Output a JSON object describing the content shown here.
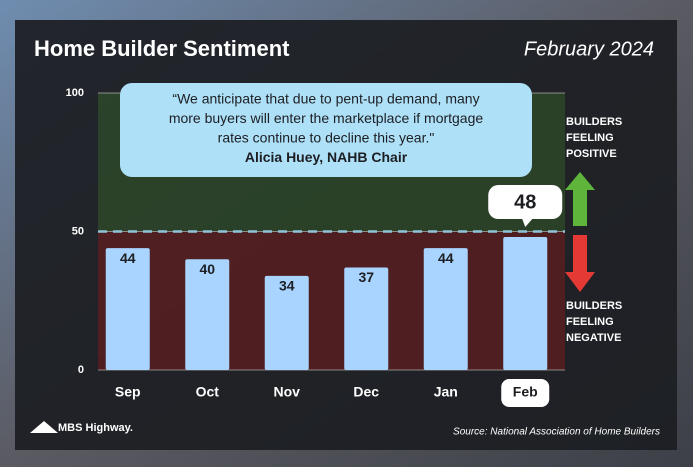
{
  "chart_data": {
    "type": "bar",
    "title": "Home Builder Sentiment",
    "subtitle": "February 2024",
    "categories": [
      "Sep",
      "Oct",
      "Nov",
      "Dec",
      "Jan",
      "Feb"
    ],
    "values": [
      44,
      40,
      34,
      37,
      44,
      48
    ],
    "color": "#a8d4ff",
    "ylim": [
      0,
      100
    ],
    "yticks": [
      0,
      50,
      100
    ],
    "threshold": 50,
    "quote": [
      "“We anticipate that due to pent-up demand, many",
      "more buyers will enter the marketplace if mortgage",
      "rates continue to decline this year.\"",
      "Alicia Huey, NAHB Chair"
    ],
    "positive_label": [
      "BUILDERS",
      "FEELING",
      "POSITIVE"
    ],
    "negative_label": [
      "BUILDERS",
      "FEELING",
      "NEGATIVE"
    ],
    "source": "Source: National Association of Home Builders",
    "brand": "MBS Highway."
  }
}
